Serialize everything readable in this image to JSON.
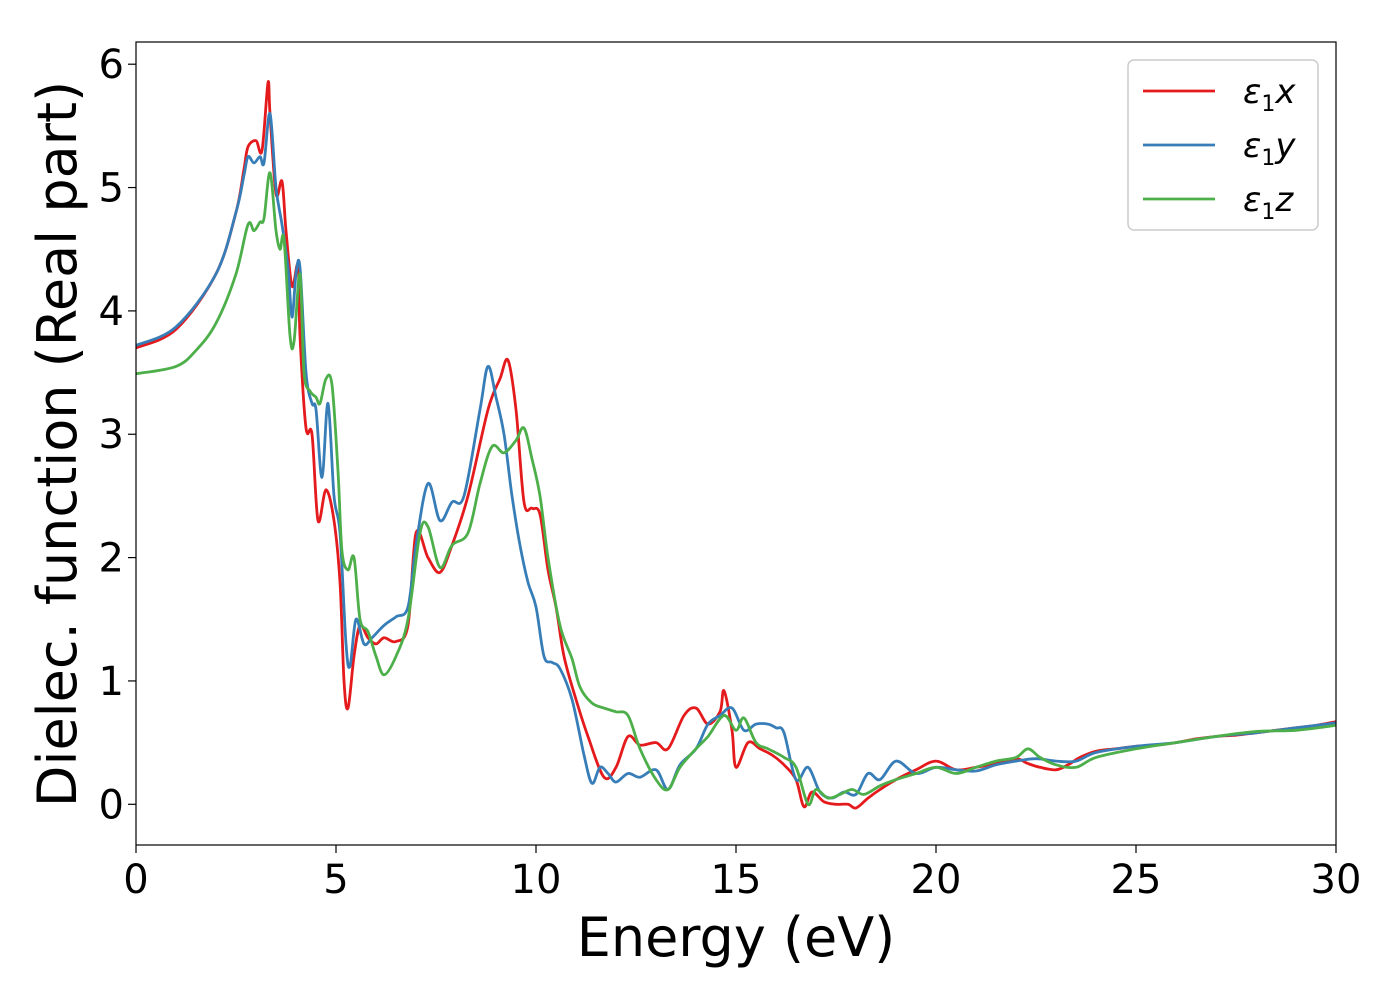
{
  "chart_data": {
    "type": "line",
    "xlabel": "Energy (eV)",
    "ylabel": "Dielec. function (Real part)",
    "xlim": [
      0,
      30
    ],
    "ylim": [
      -0.33,
      6.18
    ],
    "xticks": [
      "0",
      "5",
      "10",
      "15",
      "20",
      "25",
      "30"
    ],
    "yticks": [
      "0",
      "1",
      "2",
      "3",
      "4",
      "5",
      "6"
    ],
    "grid": false,
    "legend_position": "top-right",
    "series": [
      {
        "name": "ε1x",
        "legend_main": "ε",
        "legend_sub": "1",
        "legend_suffix": "x",
        "color": "#e41a1c",
        "x": [
          0,
          1,
          2,
          2.5,
          2.7,
          2.8,
          3.0,
          3.15,
          3.3,
          3.35,
          3.5,
          3.65,
          3.75,
          3.9,
          4.05,
          4.1,
          4.25,
          4.4,
          4.55,
          4.75,
          4.95,
          5.1,
          5.2,
          5.3,
          5.45,
          5.6,
          5.8,
          6.0,
          6.2,
          6.5,
          6.8,
          7.0,
          7.3,
          7.6,
          7.9,
          8.3,
          8.8,
          9.1,
          9.3,
          9.5,
          9.7,
          9.9,
          10.1,
          10.3,
          10.5,
          10.7,
          11.0,
          11.3,
          11.7,
          12.0,
          12.3,
          12.6,
          13.0,
          13.3,
          13.7,
          14.0,
          14.3,
          14.6,
          14.7,
          14.9,
          15.0,
          15.3,
          15.6,
          15.9,
          16.2,
          16.5,
          16.7,
          16.9,
          17.2,
          17.5,
          17.8,
          18.0,
          18.3,
          18.6,
          19.0,
          19.5,
          20.0,
          20.5,
          21.0,
          21.5,
          22.0,
          22.3,
          22.6,
          23.0,
          23.3,
          23.6,
          24.0,
          24.5,
          25.0,
          25.5,
          26.0,
          26.5,
          27.0,
          27.5,
          28.0,
          28.5,
          29.0,
          29.5,
          30.0
        ],
        "y": [
          3.7,
          3.85,
          4.3,
          4.8,
          5.15,
          5.33,
          5.38,
          5.3,
          5.85,
          5.6,
          4.95,
          5.05,
          4.65,
          4.2,
          4.37,
          3.8,
          3.05,
          3.0,
          2.3,
          2.55,
          2.3,
          1.8,
          1.0,
          0.78,
          1.2,
          1.45,
          1.35,
          1.3,
          1.35,
          1.32,
          1.45,
          2.2,
          2.0,
          1.88,
          2.1,
          2.5,
          3.2,
          3.45,
          3.6,
          3.2,
          2.45,
          2.4,
          2.35,
          1.9,
          1.6,
          1.2,
          0.85,
          0.55,
          0.22,
          0.3,
          0.55,
          0.48,
          0.5,
          0.45,
          0.72,
          0.78,
          0.65,
          0.75,
          0.92,
          0.6,
          0.3,
          0.5,
          0.45,
          0.4,
          0.32,
          0.2,
          -0.02,
          0.1,
          0.02,
          0.0,
          0.0,
          -0.03,
          0.05,
          0.12,
          0.2,
          0.28,
          0.35,
          0.28,
          0.3,
          0.33,
          0.37,
          0.33,
          0.3,
          0.28,
          0.32,
          0.38,
          0.43,
          0.45,
          0.47,
          0.48,
          0.5,
          0.53,
          0.55,
          0.56,
          0.58,
          0.6,
          0.62,
          0.64,
          0.67
        ]
      },
      {
        "name": "ε1y",
        "legend_main": "ε",
        "legend_sub": "1",
        "legend_suffix": "y",
        "color": "#377eb8",
        "x": [
          0,
          1,
          2,
          2.5,
          2.7,
          2.8,
          2.95,
          3.1,
          3.2,
          3.35,
          3.5,
          3.65,
          3.8,
          3.9,
          4.0,
          4.1,
          4.25,
          4.4,
          4.5,
          4.65,
          4.8,
          4.95,
          5.1,
          5.25,
          5.35,
          5.5,
          5.7,
          5.9,
          6.2,
          6.5,
          6.8,
          7.0,
          7.3,
          7.6,
          7.9,
          8.2,
          8.6,
          8.8,
          9.0,
          9.2,
          9.4,
          9.6,
          9.8,
          10.0,
          10.2,
          10.4,
          10.6,
          10.9,
          11.2,
          11.4,
          11.6,
          11.8,
          12.0,
          12.3,
          12.6,
          13.0,
          13.3,
          13.6,
          14.0,
          14.3,
          14.6,
          14.9,
          15.2,
          15.5,
          15.8,
          16.0,
          16.2,
          16.5,
          16.8,
          17.1,
          17.4,
          17.7,
          18.0,
          18.3,
          18.6,
          19.0,
          19.5,
          20.0,
          20.5,
          21.0,
          21.5,
          22.0,
          22.5,
          23.0,
          23.5,
          24.0,
          25.0,
          26.0,
          27.0,
          28.0,
          29.0,
          30.0
        ],
        "y": [
          3.72,
          3.87,
          4.3,
          4.8,
          5.1,
          5.25,
          5.2,
          5.25,
          5.2,
          5.6,
          5.0,
          4.7,
          4.35,
          3.95,
          4.3,
          4.35,
          3.5,
          3.25,
          3.2,
          2.65,
          3.25,
          2.5,
          2.2,
          1.3,
          1.12,
          1.5,
          1.3,
          1.35,
          1.45,
          1.52,
          1.6,
          2.1,
          2.6,
          2.3,
          2.45,
          2.5,
          3.2,
          3.55,
          3.3,
          3.0,
          2.5,
          2.1,
          1.8,
          1.6,
          1.2,
          1.15,
          1.1,
          0.85,
          0.4,
          0.17,
          0.3,
          0.25,
          0.18,
          0.25,
          0.22,
          0.28,
          0.12,
          0.32,
          0.45,
          0.65,
          0.72,
          0.78,
          0.6,
          0.65,
          0.65,
          0.62,
          0.58,
          0.2,
          0.3,
          0.1,
          0.05,
          0.1,
          0.08,
          0.25,
          0.2,
          0.35,
          0.25,
          0.3,
          0.28,
          0.27,
          0.32,
          0.35,
          0.37,
          0.35,
          0.35,
          0.42,
          0.47,
          0.5,
          0.55,
          0.58,
          0.62,
          0.66
        ]
      },
      {
        "name": "ε1z",
        "legend_main": "ε",
        "legend_sub": "1",
        "legend_suffix": "z",
        "color": "#4daf4a",
        "x": [
          0,
          1,
          1.5,
          2.0,
          2.5,
          2.8,
          2.95,
          3.1,
          3.2,
          3.35,
          3.5,
          3.6,
          3.7,
          3.85,
          3.95,
          4.1,
          4.2,
          4.35,
          4.5,
          4.6,
          4.75,
          4.9,
          5.05,
          5.15,
          5.3,
          5.45,
          5.6,
          5.8,
          6.0,
          6.2,
          6.5,
          6.8,
          7.1,
          7.3,
          7.6,
          7.9,
          8.3,
          8.6,
          8.9,
          9.2,
          9.5,
          9.7,
          9.9,
          10.1,
          10.3,
          10.6,
          10.9,
          11.1,
          11.4,
          11.7,
          12.0,
          12.3,
          12.6,
          13.0,
          13.3,
          13.6,
          14.0,
          14.3,
          14.7,
          15.0,
          15.2,
          15.5,
          15.8,
          16.2,
          16.5,
          16.8,
          17.0,
          17.3,
          17.6,
          17.9,
          18.2,
          18.6,
          19.0,
          19.5,
          20.0,
          20.5,
          21.0,
          21.5,
          22.0,
          22.3,
          22.6,
          23.0,
          23.5,
          24.0,
          25.0,
          26.0,
          27.0,
          28.0,
          29.0,
          30.0
        ],
        "y": [
          3.49,
          3.55,
          3.68,
          3.9,
          4.3,
          4.7,
          4.65,
          4.72,
          4.75,
          5.12,
          4.65,
          4.5,
          4.58,
          3.8,
          3.75,
          4.3,
          3.5,
          3.35,
          3.3,
          3.25,
          3.45,
          3.4,
          2.7,
          2.05,
          1.9,
          2.0,
          1.5,
          1.4,
          1.2,
          1.05,
          1.2,
          1.5,
          2.2,
          2.25,
          1.92,
          2.1,
          2.2,
          2.6,
          2.9,
          2.85,
          2.95,
          3.05,
          2.8,
          2.5,
          2.0,
          1.45,
          1.18,
          0.95,
          0.82,
          0.78,
          0.75,
          0.72,
          0.45,
          0.2,
          0.12,
          0.3,
          0.45,
          0.55,
          0.72,
          0.6,
          0.7,
          0.5,
          0.45,
          0.38,
          0.3,
          0.0,
          0.12,
          0.05,
          0.08,
          0.12,
          0.08,
          0.15,
          0.2,
          0.25,
          0.3,
          0.25,
          0.3,
          0.35,
          0.38,
          0.45,
          0.38,
          0.32,
          0.3,
          0.38,
          0.45,
          0.5,
          0.55,
          0.59,
          0.6,
          0.64
        ]
      }
    ]
  }
}
